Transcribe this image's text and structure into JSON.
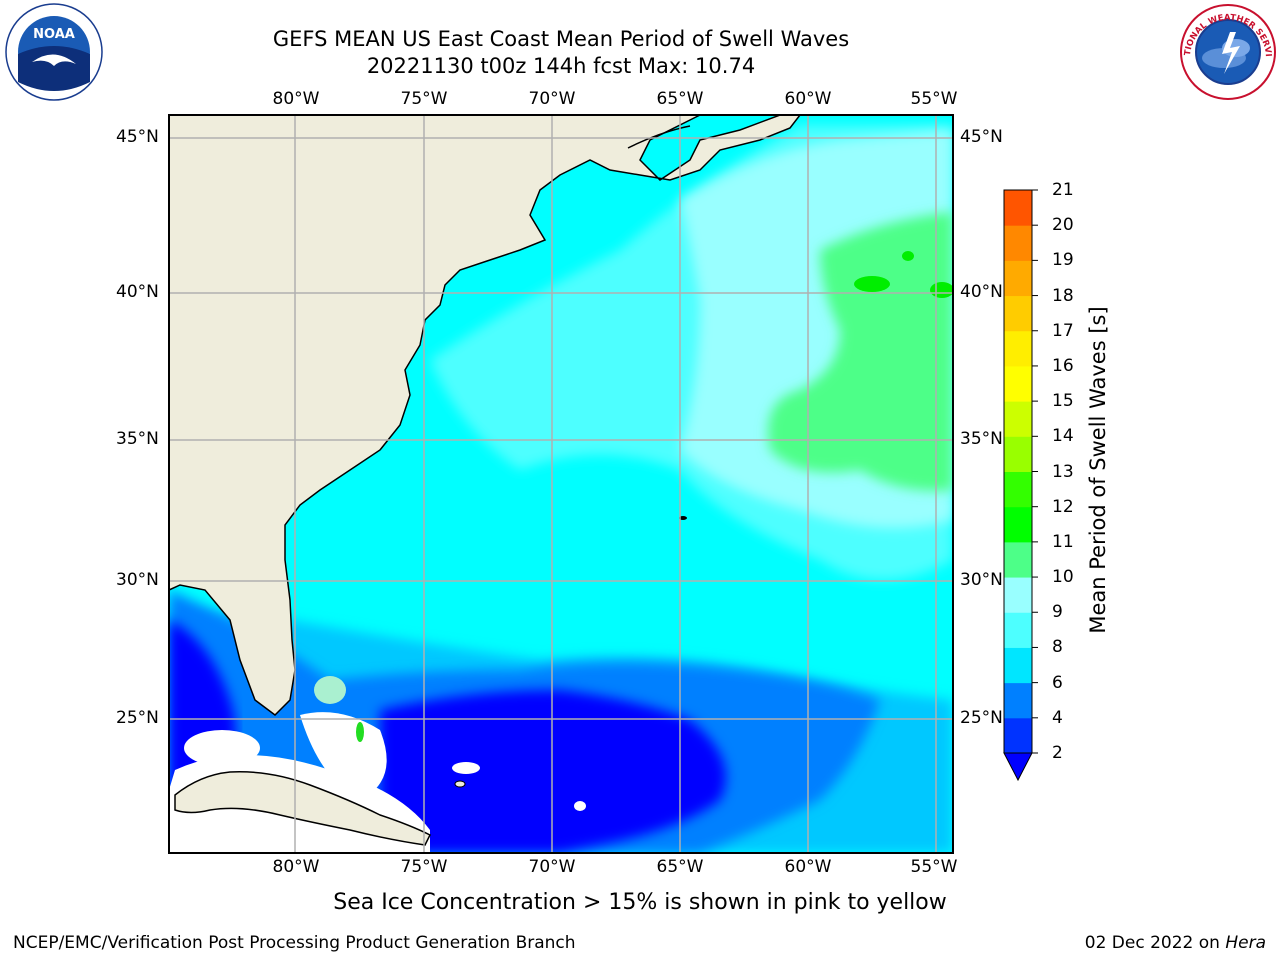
{
  "header": {
    "title_line1": "GEFS MEAN US East Coast Mean Period of Swell Waves",
    "title_line2": "20221130 t00z 144h fcst   Max: 10.74"
  },
  "logos": {
    "left": "noaa-logo",
    "left_text": "NOAA",
    "right": "nws-logo",
    "right_text": "NATIONAL WEATHER SERVICE"
  },
  "map": {
    "projection": "plate-carree",
    "lon_range": [
      -85,
      -54.2
    ],
    "lat_range": [
      20,
      46
    ],
    "longitude_labels": [
      "80°W",
      "75°W",
      "70°W",
      "65°W",
      "60°W",
      "55°W"
    ],
    "latitude_labels": [
      "45°N",
      "40°N",
      "35°N",
      "30°N",
      "25°N"
    ],
    "grid": true,
    "colors": {
      "land": "#efeddc",
      "missing": "#ffffff",
      "coastline": "#000000",
      "grid": "#b0b0b0"
    }
  },
  "colorbar": {
    "label": "Mean Period of Swell Waves [s]",
    "ticks": [
      "2",
      "4",
      "6",
      "8",
      "9",
      "10",
      "11",
      "12",
      "13",
      "14",
      "15",
      "16",
      "17",
      "18",
      "19",
      "20",
      "21"
    ],
    "colors": [
      "#0033ff",
      "#0080ff",
      "#00e6ff",
      "#4dffff",
      "#99ffff",
      "#4dff88",
      "#00ff00",
      "#33ff00",
      "#99ff00",
      "#ccff00",
      "#ffff00",
      "#ffee00",
      "#ffcc00",
      "#ffaa00",
      "#ff8800",
      "#ff5500",
      "#ff2200",
      "#ff0000"
    ],
    "extend_color": "#0000ff",
    "orientation": "vertical",
    "placement": "right"
  },
  "footer": {
    "note": "Sea Ice Concentration > 15% is shown in pink to yellow",
    "left": "NCEP/EMC/Verification Post Processing Product Generation Branch",
    "right_date": "02 Dec 2022 on ",
    "right_machine": "Hera"
  }
}
